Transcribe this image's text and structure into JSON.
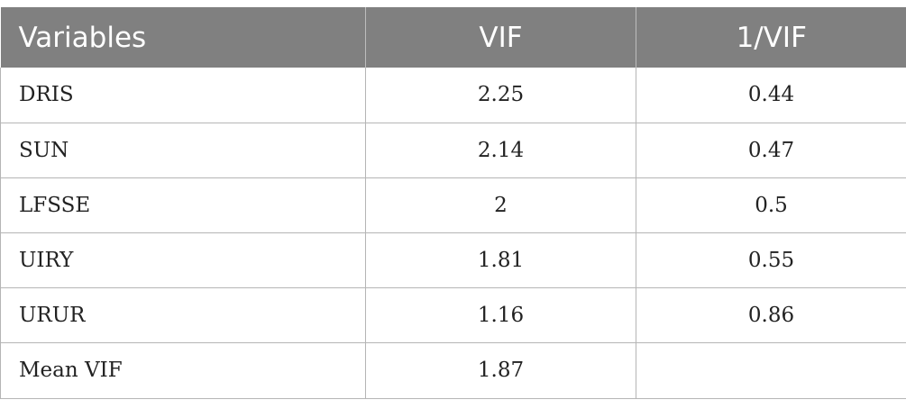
{
  "table": {
    "headers": [
      "Variables",
      "VIF",
      "1/VIF"
    ],
    "rows": [
      {
        "variable": "DRIS",
        "vif": "2.25",
        "inv_vif": "0.44"
      },
      {
        "variable": "SUN",
        "vif": "2.14",
        "inv_vif": "0.47"
      },
      {
        "variable": "LFSSE",
        "vif": "2",
        "inv_vif": "0.5"
      },
      {
        "variable": "UIRY",
        "vif": "1.81",
        "inv_vif": "0.55"
      },
      {
        "variable": "URUR",
        "vif": "1.16",
        "inv_vif": "0.86"
      },
      {
        "variable": "Mean VIF",
        "vif": "1.87",
        "inv_vif": ""
      }
    ]
  },
  "colors": {
    "header_bg": "#808080",
    "header_text": "#ffffff",
    "border": "#b5b5b5"
  }
}
